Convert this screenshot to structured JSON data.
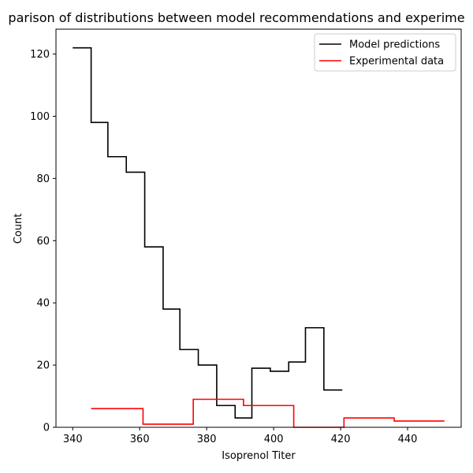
{
  "chart_data": {
    "type": "line",
    "title": "parison of distributions between model recommendations and experime",
    "xlabel": "Isoprenol Titer",
    "ylabel": "Count",
    "xlim": [
      335,
      456
    ],
    "ylim": [
      0,
      128
    ],
    "xticks": [
      340,
      360,
      380,
      400,
      420,
      440
    ],
    "yticks": [
      0,
      20,
      40,
      60,
      80,
      100,
      120
    ],
    "legend": "top-right",
    "series": [
      {
        "name": "Model predictions",
        "color": "#000000",
        "step": "post",
        "x": [
          340,
          345.5,
          350.5,
          356,
          361.5,
          367,
          372,
          377.5,
          383,
          388.5,
          393.5,
          399,
          404.5,
          409.5,
          415,
          420.5
        ],
        "values": [
          122,
          98,
          87,
          82,
          58,
          38,
          25,
          20,
          7,
          3,
          19,
          18,
          21,
          32,
          12,
          12
        ]
      },
      {
        "name": "Experimental data",
        "color": "#ff0000",
        "step": "post",
        "x": [
          345.5,
          361,
          376,
          391,
          406,
          421,
          436,
          451
        ],
        "values": [
          6,
          1,
          9,
          7,
          0,
          3,
          2,
          2
        ]
      }
    ]
  }
}
